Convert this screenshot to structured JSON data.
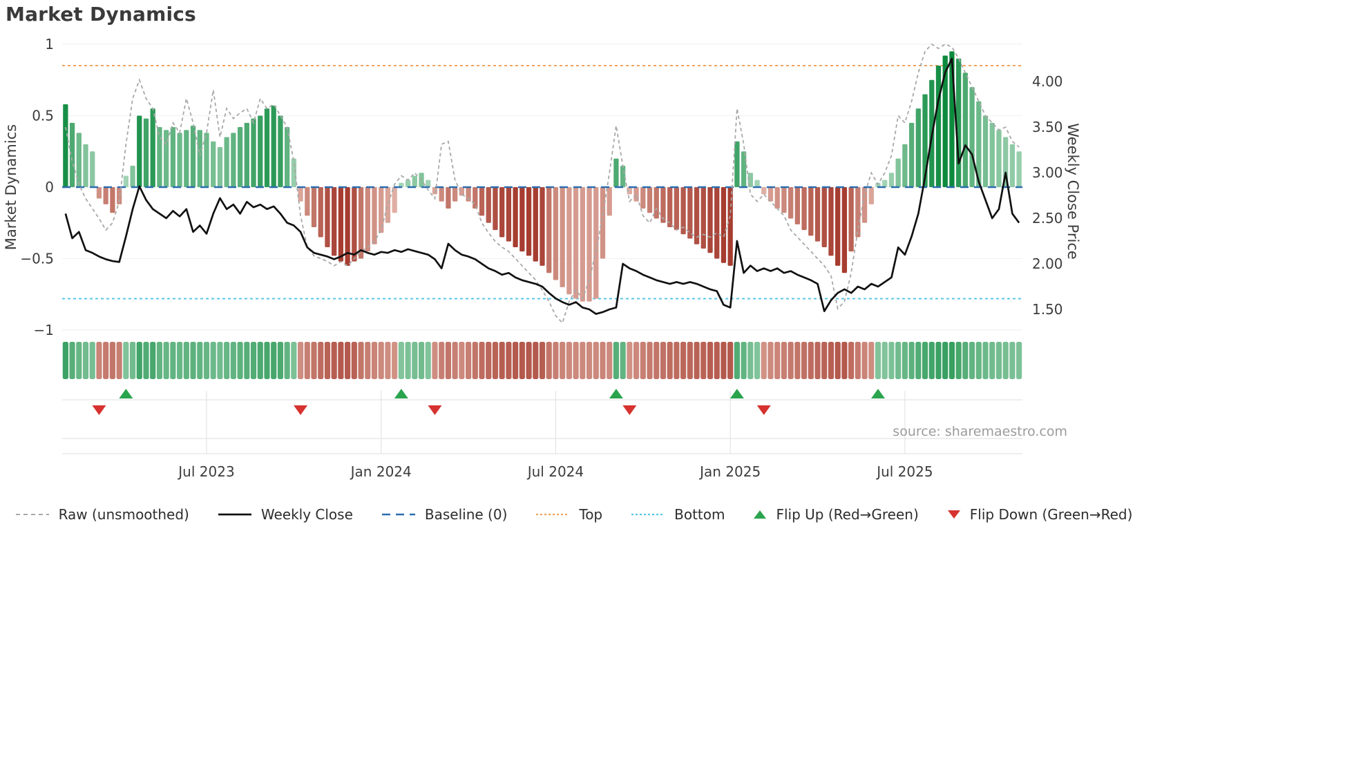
{
  "title": "Market Dynamics",
  "source": "source: sharemaestro.com",
  "legend": {
    "items": [
      {
        "label": "Raw (unsmoothed)",
        "swatch": "raw"
      },
      {
        "label": "Weekly Close",
        "swatch": "close"
      },
      {
        "label": "Baseline (0)",
        "swatch": "baseline"
      },
      {
        "label": "Top",
        "swatch": "top"
      },
      {
        "label": "Bottom",
        "swatch": "bottom"
      },
      {
        "label": "Flip Up (Red→Green)",
        "swatch": "flip-up"
      },
      {
        "label": "Flip Down (Green→Red)",
        "swatch": "flip-down"
      }
    ]
  },
  "chart_data": {
    "type": "bar",
    "title": "Market Dynamics",
    "n_points": 143,
    "x_axis": {
      "tick_labels": [
        "Jul 2023",
        "Jan 2024",
        "Jul 2024",
        "Jan 2025",
        "Jul 2025"
      ],
      "tick_indices": [
        21,
        47,
        73,
        99,
        125
      ]
    },
    "left_axis": {
      "label": "Market Dynamics",
      "ticks": [
        "1",
        "0.5",
        "0",
        "−0.5",
        "−1"
      ],
      "tick_values": [
        1,
        0.5,
        0,
        -0.5,
        -1
      ],
      "ylim": [
        -1.05,
        1.05
      ]
    },
    "right_axis": {
      "label": "Weekly Close Price",
      "ticks": [
        "4.00",
        "3.50",
        "3.00",
        "2.50",
        "2.00",
        "1.50"
      ],
      "tick_values": [
        4.0,
        3.5,
        3.0,
        2.5,
        2.0,
        1.5
      ],
      "ylim": [
        1.27,
        4.41
      ]
    },
    "reference_lines": {
      "baseline": 0,
      "top": 0.85,
      "bottom": -0.78
    },
    "series": {
      "oscillator": [
        0.58,
        0.45,
        0.38,
        0.3,
        0.25,
        -0.08,
        -0.12,
        -0.18,
        -0.12,
        0.08,
        0.15,
        0.5,
        0.48,
        0.55,
        0.42,
        0.4,
        0.42,
        0.38,
        0.4,
        0.43,
        0.4,
        0.38,
        0.32,
        0.28,
        0.35,
        0.38,
        0.42,
        0.45,
        0.48,
        0.5,
        0.55,
        0.57,
        0.5,
        0.42,
        0.2,
        -0.1,
        -0.2,
        -0.28,
        -0.35,
        -0.42,
        -0.48,
        -0.52,
        -0.55,
        -0.52,
        -0.5,
        -0.45,
        -0.4,
        -0.32,
        -0.25,
        -0.18,
        0.03,
        0.05,
        0.08,
        0.1,
        0.05,
        -0.05,
        -0.1,
        -0.15,
        -0.1,
        -0.06,
        -0.1,
        -0.15,
        -0.2,
        -0.25,
        -0.3,
        -0.35,
        -0.38,
        -0.42,
        -0.45,
        -0.48,
        -0.52,
        -0.55,
        -0.6,
        -0.65,
        -0.7,
        -0.75,
        -0.78,
        -0.8,
        -0.8,
        -0.78,
        -0.5,
        -0.2,
        0.2,
        0.15,
        -0.05,
        -0.1,
        -0.15,
        -0.18,
        -0.22,
        -0.25,
        -0.28,
        -0.3,
        -0.33,
        -0.36,
        -0.4,
        -0.43,
        -0.46,
        -0.5,
        -0.53,
        -0.55,
        0.32,
        0.25,
        0.1,
        0.05,
        -0.05,
        -0.1,
        -0.15,
        -0.18,
        -0.22,
        -0.26,
        -0.3,
        -0.34,
        -0.38,
        -0.42,
        -0.48,
        -0.55,
        -0.6,
        -0.45,
        -0.35,
        -0.25,
        -0.12,
        0.03,
        0.05,
        0.1,
        0.2,
        0.3,
        0.45,
        0.55,
        0.65,
        0.75,
        0.85,
        0.92,
        0.95,
        0.9,
        0.8,
        0.7,
        0.6,
        0.5,
        0.45,
        0.4,
        0.35,
        0.3,
        0.25
      ],
      "raw": [
        0.42,
        0.18,
        0.02,
        -0.08,
        -0.15,
        -0.22,
        -0.3,
        -0.25,
        -0.1,
        0.3,
        0.62,
        0.75,
        0.62,
        0.55,
        0.35,
        0.3,
        0.45,
        0.38,
        0.62,
        0.45,
        0.22,
        0.38,
        0.68,
        0.35,
        0.55,
        0.48,
        0.52,
        0.55,
        0.45,
        0.62,
        0.55,
        0.58,
        0.5,
        0.42,
        0.18,
        -0.2,
        -0.42,
        -0.48,
        -0.5,
        -0.52,
        -0.55,
        -0.52,
        -0.55,
        -0.5,
        -0.45,
        -0.42,
        -0.38,
        -0.3,
        -0.12,
        0.02,
        0.08,
        0.05,
        0.1,
        0.05,
        -0.02,
        -0.08,
        0.3,
        0.32,
        0.05,
        -0.05,
        -0.08,
        -0.12,
        -0.25,
        -0.32,
        -0.38,
        -0.42,
        -0.45,
        -0.5,
        -0.55,
        -0.6,
        -0.65,
        -0.72,
        -0.8,
        -0.9,
        -0.95,
        -0.8,
        -0.72,
        -0.78,
        -0.65,
        -0.45,
        -0.2,
        0.1,
        0.43,
        0.15,
        -0.1,
        -0.05,
        -0.2,
        -0.25,
        -0.15,
        -0.22,
        -0.25,
        -0.3,
        -0.28,
        -0.32,
        -0.35,
        -0.33,
        -0.35,
        -0.32,
        -0.35,
        -0.2,
        0.55,
        0.3,
        -0.05,
        -0.1,
        -0.05,
        -0.1,
        -0.15,
        -0.2,
        -0.3,
        -0.35,
        -0.4,
        -0.45,
        -0.5,
        -0.55,
        -0.62,
        -0.85,
        -0.8,
        -0.6,
        -0.3,
        -0.05,
        0.1,
        0.02,
        0.1,
        0.22,
        0.5,
        0.45,
        0.6,
        0.8,
        0.95,
        1.0,
        0.97,
        1.0,
        0.98,
        0.9,
        0.8,
        0.7,
        0.6,
        0.5,
        0.45,
        0.4,
        0.42,
        0.32,
        0.28
      ],
      "weekly_close": [
        2.55,
        2.28,
        2.35,
        2.15,
        2.12,
        2.08,
        2.05,
        2.03,
        2.02,
        2.3,
        2.6,
        2.85,
        2.7,
        2.6,
        2.55,
        2.5,
        2.58,
        2.52,
        2.6,
        2.35,
        2.42,
        2.33,
        2.55,
        2.72,
        2.6,
        2.65,
        2.55,
        2.68,
        2.62,
        2.65,
        2.6,
        2.63,
        2.55,
        2.45,
        2.42,
        2.35,
        2.18,
        2.12,
        2.1,
        2.08,
        2.05,
        2.08,
        2.12,
        2.1,
        2.15,
        2.12,
        2.1,
        2.13,
        2.12,
        2.15,
        2.13,
        2.16,
        2.14,
        2.12,
        2.1,
        2.05,
        1.95,
        2.22,
        2.15,
        2.1,
        2.08,
        2.05,
        2.0,
        1.95,
        1.92,
        1.88,
        1.9,
        1.85,
        1.82,
        1.8,
        1.78,
        1.75,
        1.68,
        1.62,
        1.58,
        1.55,
        1.58,
        1.52,
        1.5,
        1.45,
        1.47,
        1.5,
        1.52,
        2.0,
        1.95,
        1.92,
        1.88,
        1.85,
        1.82,
        1.8,
        1.78,
        1.8,
        1.78,
        1.8,
        1.78,
        1.75,
        1.72,
        1.7,
        1.55,
        1.52,
        2.25,
        1.9,
        1.98,
        1.92,
        1.95,
        1.92,
        1.95,
        1.9,
        1.92,
        1.88,
        1.85,
        1.82,
        1.78,
        1.48,
        1.6,
        1.68,
        1.72,
        1.68,
        1.75,
        1.72,
        1.78,
        1.75,
        1.8,
        1.85,
        2.18,
        2.1,
        2.3,
        2.55,
        2.95,
        3.4,
        3.8,
        4.1,
        4.25,
        3.1,
        3.3,
        3.2,
        2.9,
        2.7,
        2.5,
        2.6,
        3.0,
        2.55,
        2.45
      ]
    },
    "bar_shades": [
      0.95,
      0.7,
      0.55,
      0.45,
      0.4,
      0.45,
      0.55,
      0.6,
      0.5,
      0.3,
      0.45,
      0.9,
      0.75,
      0.85,
      0.6,
      0.55,
      0.6,
      0.55,
      0.6,
      0.65,
      0.6,
      0.55,
      0.5,
      0.45,
      0.55,
      0.6,
      0.65,
      0.7,
      0.75,
      0.8,
      0.85,
      0.85,
      0.8,
      0.6,
      0.35,
      0.35,
      0.5,
      0.6,
      0.7,
      0.8,
      0.85,
      0.9,
      0.9,
      0.8,
      0.6,
      0.5,
      0.45,
      0.4,
      0.35,
      0.3,
      0.3,
      0.35,
      0.4,
      0.45,
      0.3,
      0.35,
      0.5,
      0.6,
      0.5,
      0.4,
      0.5,
      0.6,
      0.7,
      0.75,
      0.8,
      0.85,
      0.85,
      0.9,
      0.9,
      0.9,
      0.9,
      0.85,
      0.6,
      0.5,
      0.45,
      0.4,
      0.4,
      0.4,
      0.4,
      0.4,
      0.45,
      0.4,
      0.7,
      0.6,
      0.3,
      0.4,
      0.5,
      0.55,
      0.6,
      0.65,
      0.7,
      0.7,
      0.75,
      0.75,
      0.8,
      0.8,
      0.85,
      0.85,
      0.9,
      0.9,
      0.75,
      0.6,
      0.4,
      0.3,
      0.3,
      0.4,
      0.45,
      0.5,
      0.55,
      0.6,
      0.65,
      0.7,
      0.75,
      0.8,
      0.85,
      0.9,
      0.9,
      0.7,
      0.55,
      0.45,
      0.35,
      0.3,
      0.3,
      0.35,
      0.45,
      0.55,
      0.65,
      0.75,
      0.85,
      0.9,
      0.95,
      1.0,
      1.0,
      0.85,
      0.7,
      0.6,
      0.55,
      0.5,
      0.45,
      0.42,
      0.4,
      0.38,
      0.35
    ],
    "flip_up_indices": [
      9,
      50,
      82,
      100,
      121
    ],
    "flip_down_indices": [
      5,
      35,
      55,
      84,
      104
    ],
    "colors": {
      "green_dark": "#0c8a3e",
      "green_light": "#e1f2e6",
      "red_dark": "#9c2a1d",
      "red_light": "#fce7dc",
      "baseline": "#2b6cb0",
      "top": "#f0a35e",
      "bottom": "#56c7e6",
      "raw": "#a8a8a8",
      "close": "#111111",
      "flip_up": "#2aa44d",
      "flip_down": "#d63230",
      "grid": "#e4e4e4"
    }
  }
}
